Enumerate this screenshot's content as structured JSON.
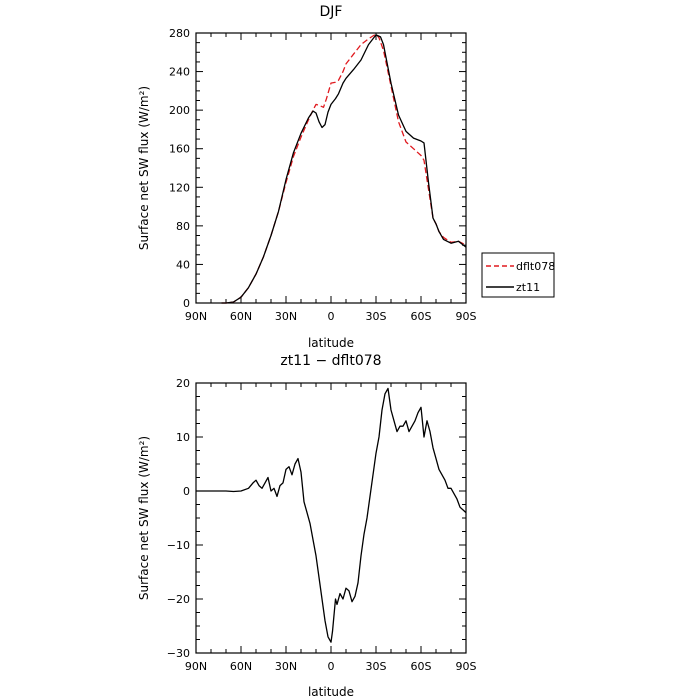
{
  "chart_data": [
    {
      "type": "line",
      "title": "DJF",
      "xlabel": "latitude",
      "ylabel": "Surface net SW flux (W/m²)",
      "xlim": [
        90,
        -90
      ],
      "ylim": [
        0,
        280
      ],
      "xticks": [
        {
          "value": 90,
          "label": "90N"
        },
        {
          "value": 60,
          "label": "60N"
        },
        {
          "value": 30,
          "label": "30N"
        },
        {
          "value": 0,
          "label": "0"
        },
        {
          "value": -30,
          "label": "30S"
        },
        {
          "value": -60,
          "label": "60S"
        },
        {
          "value": -90,
          "label": "90S"
        }
      ],
      "yticks": [
        {
          "value": 0,
          "label": "0"
        },
        {
          "value": 40,
          "label": "40"
        },
        {
          "value": 80,
          "label": "80"
        },
        {
          "value": 120,
          "label": "120"
        },
        {
          "value": 160,
          "label": "160"
        },
        {
          "value": 200,
          "label": "200"
        },
        {
          "value": 240,
          "label": "240"
        },
        {
          "value": 280,
          "label": "280"
        }
      ],
      "legend": "right",
      "series": [
        {
          "name": "dflt078",
          "color": "#e0191e",
          "dash": "dashed",
          "x": [
            73,
            70,
            65,
            60,
            55,
            50,
            45,
            40,
            35,
            30,
            25,
            20,
            15,
            12,
            10,
            8,
            5,
            3,
            0,
            -3,
            -5,
            -8,
            -10,
            -15,
            -20,
            -25,
            -30,
            -32,
            -35,
            -40,
            -45,
            -50,
            -55,
            -60,
            -62,
            -65,
            -68,
            -70,
            -72,
            -75,
            -80,
            -85,
            -90
          ],
          "y": [
            0,
            0,
            1,
            6,
            16,
            30,
            48,
            70,
            95,
            125,
            152,
            172,
            190,
            200,
            206,
            205,
            203,
            212,
            228,
            229,
            231,
            240,
            248,
            258,
            268,
            274,
            279,
            275,
            262,
            225,
            188,
            167,
            160,
            153,
            148,
            118,
            88,
            82,
            74,
            68,
            63,
            64,
            60
          ]
        },
        {
          "name": "zt11",
          "color": "#000000",
          "dash": "solid",
          "x": [
            73,
            70,
            65,
            60,
            55,
            50,
            45,
            40,
            35,
            30,
            25,
            20,
            15,
            12,
            10,
            8,
            6,
            4,
            2,
            0,
            -3,
            -5,
            -8,
            -10,
            -15,
            -20,
            -25,
            -30,
            -33,
            -35,
            -40,
            -45,
            -50,
            -55,
            -60,
            -62,
            -65,
            -68,
            -70,
            -72,
            -75,
            -80,
            -85,
            -90
          ],
          "y": [
            0,
            0,
            1,
            6,
            16,
            30,
            48,
            70,
            95,
            128,
            156,
            176,
            192,
            199,
            197,
            188,
            182,
            185,
            198,
            206,
            212,
            217,
            228,
            233,
            242,
            252,
            268,
            278,
            276,
            268,
            228,
            195,
            178,
            171,
            168,
            166,
            125,
            88,
            82,
            74,
            66,
            62,
            64,
            58
          ]
        }
      ]
    },
    {
      "type": "line",
      "title": "zt11 − dflt078",
      "xlabel": "latitude",
      "ylabel": "Surface net SW flux (W/m²)",
      "xlim": [
        90,
        -90
      ],
      "ylim": [
        -30,
        20
      ],
      "xticks": [
        {
          "value": 90,
          "label": "90N"
        },
        {
          "value": 60,
          "label": "60N"
        },
        {
          "value": 30,
          "label": "30N"
        },
        {
          "value": 0,
          "label": "0"
        },
        {
          "value": -30,
          "label": "30S"
        },
        {
          "value": -60,
          "label": "60S"
        },
        {
          "value": -90,
          "label": "90S"
        }
      ],
      "yticks": [
        {
          "value": -30,
          "label": "−30"
        },
        {
          "value": -20,
          "label": "−20"
        },
        {
          "value": -10,
          "label": "−10"
        },
        {
          "value": 0,
          "label": "0"
        },
        {
          "value": 10,
          "label": "10"
        },
        {
          "value": 20,
          "label": "20"
        }
      ],
      "series": [
        {
          "color": "#000000",
          "dash": "solid",
          "x": [
            90,
            80,
            70,
            65,
            60,
            55,
            52,
            50,
            48,
            46,
            44,
            42,
            40,
            38,
            36,
            34,
            32,
            30,
            28,
            26,
            24,
            22,
            20,
            18,
            16,
            14,
            12,
            10,
            8,
            6,
            4,
            2,
            0,
            -1,
            -2,
            -3,
            -4,
            -6,
            -8,
            -10,
            -12,
            -14,
            -16,
            -18,
            -20,
            -22,
            -24,
            -26,
            -28,
            -30,
            -32,
            -34,
            -36,
            -38,
            -40,
            -42,
            -44,
            -46,
            -48,
            -50,
            -52,
            -54,
            -56,
            -58,
            -60,
            -62,
            -64,
            -66,
            -68,
            -70,
            -72,
            -74,
            -76,
            -78,
            -80,
            -82,
            -84,
            -86,
            -88,
            -90
          ],
          "y": [
            0,
            0,
            0,
            -0.1,
            0,
            0.5,
            1.5,
            2.0,
            1.0,
            0.5,
            1.5,
            2.5,
            0,
            0.5,
            -1.0,
            1.0,
            1.5,
            4.0,
            4.5,
            3.0,
            5.0,
            6.0,
            3.5,
            -2.0,
            -4.0,
            -6.0,
            -9.0,
            -12.0,
            -16.0,
            -20.0,
            -24.0,
            -27.0,
            -28.0,
            -26.0,
            -23.0,
            -20.0,
            -21.0,
            -19.0,
            -20.0,
            -18.0,
            -18.5,
            -20.5,
            -19.5,
            -17.0,
            -12.0,
            -8.0,
            -5.0,
            -1.0,
            3.0,
            7.0,
            10.0,
            15.0,
            18.0,
            19.0,
            15.0,
            13.0,
            11.0,
            12.0,
            12.0,
            13.0,
            11.0,
            12.0,
            13.0,
            14.5,
            15.5,
            10.0,
            13.0,
            11.0,
            8.0,
            6.0,
            4.0,
            3.0,
            2.0,
            0.5,
            0.5,
            -0.5,
            -1.5,
            -3.0,
            -3.5,
            -4.0
          ]
        }
      ]
    }
  ]
}
